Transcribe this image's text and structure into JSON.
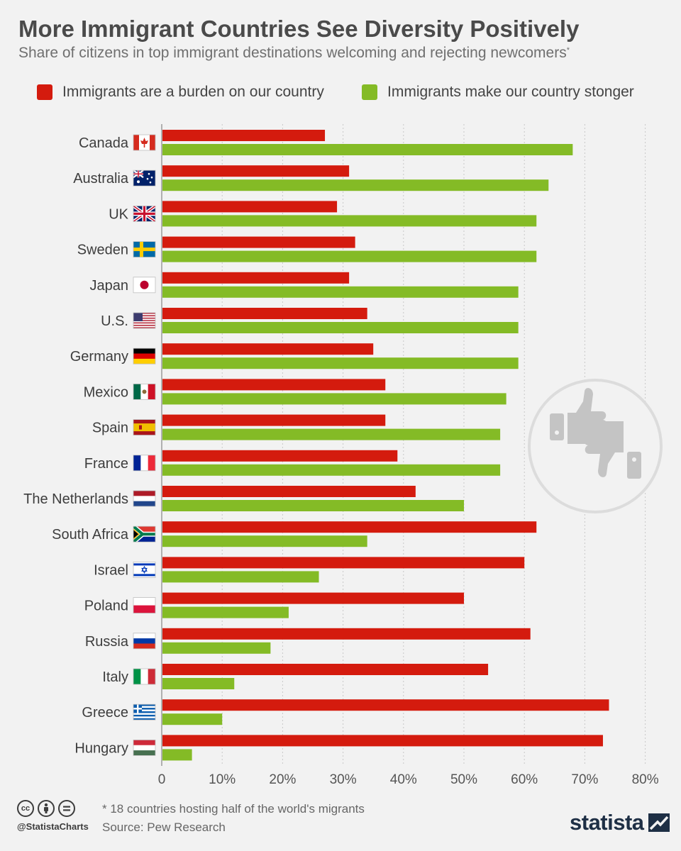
{
  "title": "More Immigrant Countries See Diversity Positively",
  "subtitle": "Share of citizens in top immigrant destinations welcoming and rejecting newcomers",
  "subtitle_mark": "*",
  "colors": {
    "burden": "#d41b0e",
    "stronger": "#84bb26",
    "grid": "#c8c8c8",
    "axis": "#9a9a9a"
  },
  "chart_data": {
    "type": "bar",
    "orientation": "horizontal",
    "categories": [
      "Canada",
      "Australia",
      "UK",
      "Sweden",
      "Japan",
      "U.S.",
      "Germany",
      "Mexico",
      "Spain",
      "France",
      "The Netherlands",
      "South Africa",
      "Israel",
      "Poland",
      "Russia",
      "Italy",
      "Greece",
      "Hungary"
    ],
    "series": [
      {
        "name": "Immigrants are a burden on our country",
        "color": "#d41b0e",
        "values": [
          27,
          31,
          29,
          32,
          31,
          34,
          35,
          37,
          37,
          39,
          42,
          62,
          60,
          50,
          61,
          54,
          74,
          73
        ]
      },
      {
        "name": "Immigrants make our country stonger",
        "color": "#84bb26",
        "values": [
          68,
          64,
          62,
          62,
          59,
          59,
          59,
          57,
          56,
          56,
          50,
          34,
          26,
          21,
          18,
          12,
          10,
          5
        ]
      }
    ],
    "xlim": [
      0,
      80
    ],
    "xticks": [
      "0",
      "10%",
      "20%",
      "30%",
      "40%",
      "50%",
      "60%",
      "70%",
      "80%"
    ],
    "grid": true,
    "legend": "top"
  },
  "flags": [
    "canada-flag-icon",
    "australia-flag-icon",
    "uk-flag-icon",
    "sweden-flag-icon",
    "japan-flag-icon",
    "us-flag-icon",
    "germany-flag-icon",
    "mexico-flag-icon",
    "spain-flag-icon",
    "france-flag-icon",
    "netherlands-flag-icon",
    "south-africa-flag-icon",
    "israel-flag-icon",
    "poland-flag-icon",
    "russia-flag-icon",
    "italy-flag-icon",
    "greece-flag-icon",
    "hungary-flag-icon"
  ],
  "decoration": "thumbs-up-down-icon",
  "footer": {
    "license_icons": [
      "cc-icon",
      "by-icon",
      "nd-icon"
    ],
    "handle": "@StatistaCharts",
    "note": "* 18 countries hosting half of the world's migrants",
    "source": "Source: Pew Research",
    "brand": "statista"
  }
}
